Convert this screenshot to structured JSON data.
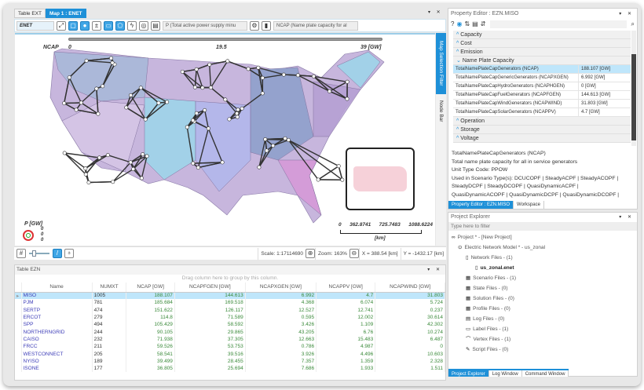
{
  "map_doc": {
    "tabs": [
      "Table EXT",
      "Map 1 : ENET"
    ],
    "active_tab": 1,
    "toolbar": {
      "layer_combo": "ENET",
      "p_combo": "P (Total active power supply minu",
      "ncap_combo": "NCAP (Name plate capacity for al"
    },
    "legend_bar": {
      "label": "NCAP",
      "min": "0",
      "mid": "19.5",
      "max": "39 [GW]"
    },
    "p_legend": {
      "title": "P [GW]",
      "values": [
        "0",
        "0",
        "0"
      ]
    },
    "scale_bar": {
      "ticks": [
        "0",
        "362.8741",
        "725.7483",
        "1088.6224"
      ],
      "unit": "[km]"
    },
    "side_tabs": [
      "Map Selection Filter",
      "Node Bar"
    ],
    "status": {
      "scale": "Scale: 1:17114690",
      "zoom": "Zoom: 163%",
      "x": "X = 388.54 [km]",
      "y": "Y = -1432.17 [km]"
    }
  },
  "table": {
    "title": "Table EZN",
    "group_hint": "Drag column here to group by this column.",
    "columns": [
      "Name",
      "NUMXT",
      "NCAP [GW]",
      "NCAPFGEN [GW]",
      "NCAPXGEN [GW]",
      "NCAPPV [GW]",
      "NCAPWIND [GW]"
    ],
    "rows": [
      [
        "MISO",
        "1005",
        "188.107",
        "144.613",
        "6.992",
        "4.7",
        "31.803"
      ],
      [
        "PJM",
        "781",
        "185.684",
        "169.518",
        "4.368",
        "6.074",
        "5.724"
      ],
      [
        "SERTP",
        "474",
        "151.622",
        "126.117",
        "12.527",
        "12.741",
        "0.237"
      ],
      [
        "ERCOT",
        "279",
        "114.8",
        "71.589",
        "0.595",
        "12.002",
        "30.614"
      ],
      [
        "SPP",
        "494",
        "105.429",
        "58.592",
        "3.426",
        "1.109",
        "42.302"
      ],
      [
        "NORTHERNGRID",
        "244",
        "90.105",
        "29.865",
        "43.205",
        "6.76",
        "10.274"
      ],
      [
        "CAISO",
        "232",
        "71.938",
        "37.305",
        "12.663",
        "15.483",
        "6.487"
      ],
      [
        "FRCC",
        "211",
        "59.526",
        "53.753",
        "0.786",
        "4.987",
        "0"
      ],
      [
        "WESTCONNECT",
        "205",
        "58.541",
        "39.516",
        "3.926",
        "4.496",
        "10.603"
      ],
      [
        "NYISO",
        "189",
        "39.499",
        "28.455",
        "7.357",
        "1.359",
        "2.328"
      ],
      [
        "ISONE",
        "177",
        "36.805",
        "25.694",
        "7.686",
        "1.933",
        "1.511"
      ]
    ],
    "selected_row": 0
  },
  "property_editor": {
    "title": "Property Editor : EZN.MISO",
    "categories_before": [
      "Capacity",
      "Cost",
      "Emission"
    ],
    "expanded": "Name Plate Capacity",
    "rows": [
      [
        "TotalNamePlateCapGenerators (NCAP)",
        "188.107 [GW]"
      ],
      [
        "TotalNamePlateCapGenericGenerators (NCAPXGEN)",
        "6.992 [GW]"
      ],
      [
        "TotalNamePlateCapHydroGenerators (NCAPHGEN)",
        "0 [GW]"
      ],
      [
        "TotalNamePlateCapFuelGenerators (NCAPFGEN)",
        "144.613 [GW]"
      ],
      [
        "TotalNamePlateCapWindGenerators (NCAPWIND)",
        "31.803 [GW]"
      ],
      [
        "TotalNamePlateCapSolarGenerators (NCAPPV)",
        "4.7 [GW]"
      ]
    ],
    "categories_after": [
      "Operation",
      "Storage",
      "Voltage"
    ],
    "description": [
      "TotalNamePlateCapGenerators (NCAP)",
      "Total name plate capacity for all in service generators",
      "Unit Type Code: PPOW",
      "Used in Scenario Type(s): DCUCOPF | SteadyACPF | SteadyACOPF |",
      "SteadyDCPF | SteadyDCOPF | QuasiDynamicACPF |",
      "QuasiDynamicACOPF | QuasiDynamicDCPF | QuasiDynamicDCOPF |"
    ],
    "tabs": [
      "Property Editor : EZN.MISO",
      "Workspace"
    ]
  },
  "project_explorer": {
    "title": "Project Explorer",
    "filter_placeholder": "Type here to filter",
    "items": [
      "Project * - [New Project]",
      "Electric Network Model * - us_zonal",
      "Network Files - (1)",
      "us_zonal.enet",
      "Scenario Files - (1)",
      "State Files - (0)",
      "Solution Files - (0)",
      "Profile Files - (0)",
      "Log Files - (0)",
      "Label Files - (1)",
      "Vertex Files - (1)",
      "Script Files - (0)"
    ],
    "tabs": [
      "Project Explorer",
      "Log Window",
      "Command Window"
    ]
  },
  "colors": {
    "accent": "#1e90d8",
    "selection": "#bfe6fb",
    "value_green": "#3a8a3a",
    "name_blue": "#3d3db8"
  }
}
